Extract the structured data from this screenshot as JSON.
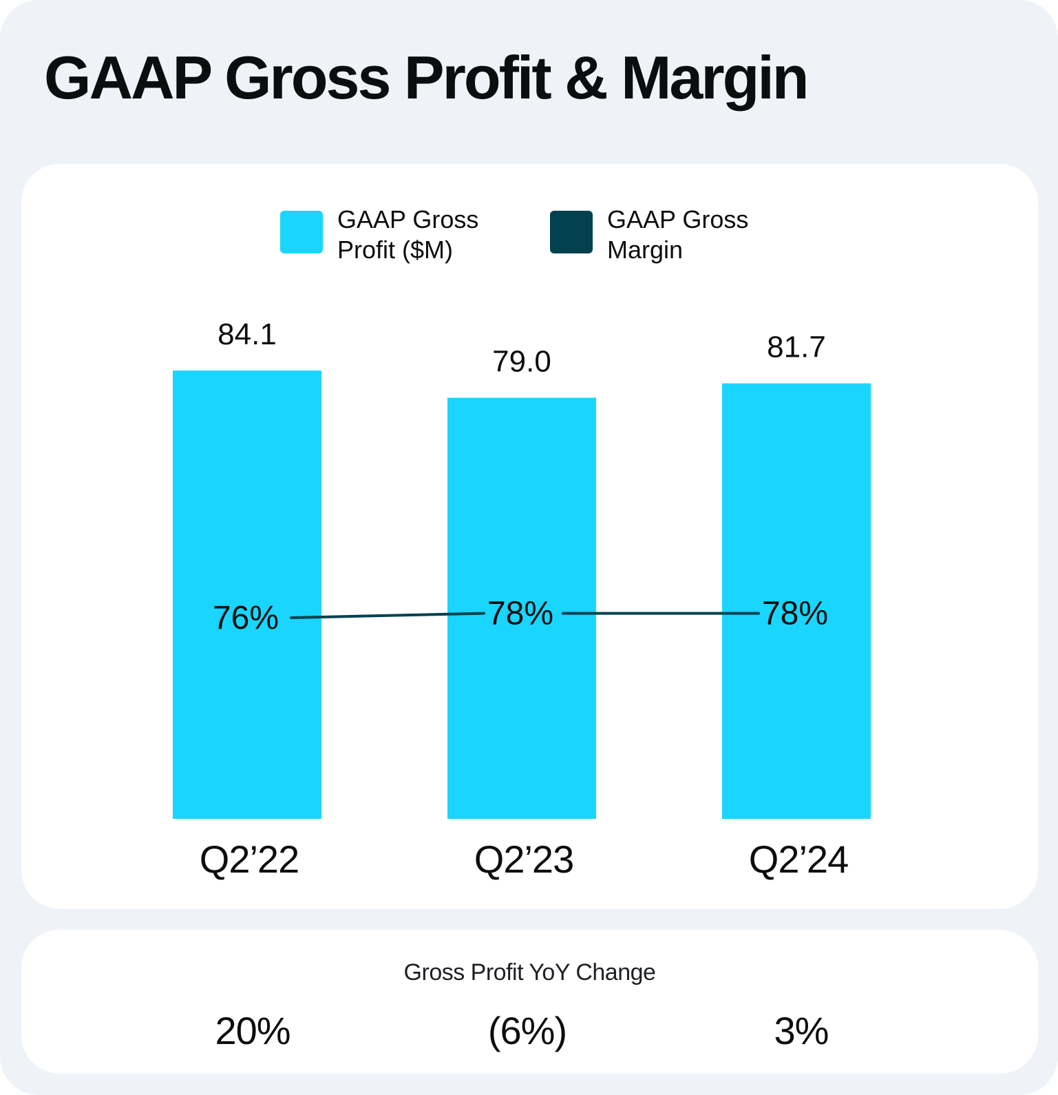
{
  "title": "GAAP Gross Profit & Margin",
  "colors": {
    "bar": "#1ad5fd",
    "line": "#02414f",
    "background": "#eff3f8",
    "card": "#ffffff",
    "text": "#0c0d0f"
  },
  "legend": [
    {
      "label": "GAAP Gross Profit ($M)",
      "color": "#1ad5fd"
    },
    {
      "label": "GAAP Gross Margin",
      "color": "#02414f"
    }
  ],
  "chart_data": {
    "type": "bar",
    "title": "GAAP Gross Profit & Margin",
    "categories": [
      "Q2’22",
      "Q2’23",
      "Q2’24"
    ],
    "series": [
      {
        "name": "GAAP Gross Profit ($M)",
        "type": "bar",
        "values": [
          84.1,
          79.0,
          81.7
        ],
        "labels": [
          "84.1",
          "79.0",
          "81.7"
        ]
      },
      {
        "name": "GAAP Gross Margin",
        "type": "line",
        "values": [
          76,
          78,
          78
        ],
        "labels": [
          "76%",
          "78%",
          "78%"
        ]
      }
    ],
    "xlabel": "",
    "ylabel": "",
    "grid": false,
    "legend_position": "top"
  },
  "yoy": {
    "title": "Gross Profit YoY Change",
    "values": [
      "20%",
      "(6%)",
      "3%"
    ]
  }
}
